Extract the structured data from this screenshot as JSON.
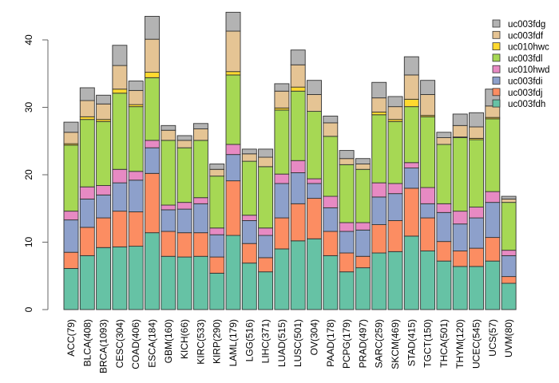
{
  "chart_data": {
    "type": "bar",
    "stacked": true,
    "title": "",
    "xlabel": "",
    "ylabel": "",
    "ylim": [
      0,
      40
    ],
    "yticks": [
      0,
      10,
      20,
      30,
      40
    ],
    "grid": false,
    "legend_position": "top-right",
    "categories": [
      "ACC(79)",
      "BLCA(408)",
      "BRCA(1093)",
      "CESC(304)",
      "COAD(406)",
      "ESCA(184)",
      "GBM(160)",
      "KICH(66)",
      "KIRC(533)",
      "KIRP(290)",
      "LAML(179)",
      "LGG(516)",
      "LIHC(371)",
      "LUAD(515)",
      "LUSC(501)",
      "OV(304)",
      "PAAD(178)",
      "PCPG(179)",
      "PRAD(497)",
      "SARC(259)",
      "SKCM(469)",
      "STAD(415)",
      "TGCT(150)",
      "THCA(501)",
      "THYM(120)",
      "UCEC(545)",
      "UCS(57)",
      "UVM(80)"
    ],
    "series": [
      {
        "name": "uc003fdh",
        "color": "#66C2A5",
        "values": [
          6.1,
          8.0,
          9.2,
          9.3,
          9.4,
          11.4,
          7.9,
          7.8,
          7.9,
          5.4,
          11.0,
          6.9,
          5.6,
          9.0,
          10.2,
          10.5,
          8.0,
          5.6,
          6.2,
          8.4,
          8.6,
          10.9,
          8.7,
          7.2,
          6.4,
          6.4,
          7.2,
          3.9
        ]
      },
      {
        "name": "uc003fdj",
        "color": "#FC8D62",
        "values": [
          2.4,
          4.2,
          4.4,
          5.3,
          5.1,
          8.8,
          3.7,
          3.6,
          3.5,
          2.4,
          8.1,
          2.9,
          2.1,
          4.6,
          5.5,
          6.0,
          3.6,
          2.8,
          1.7,
          4.2,
          4.6,
          7.1,
          4.9,
          2.9,
          2.3,
          2.7,
          3.5,
          1.0
        ]
      },
      {
        "name": "uc003fdi",
        "color": "#8DA0CB",
        "values": [
          4.8,
          4.2,
          3.4,
          4.2,
          4.7,
          3.8,
          3.2,
          3.5,
          4.3,
          3.3,
          3.9,
          3.4,
          3.3,
          5.1,
          4.6,
          2.2,
          3.5,
          3.2,
          3.9,
          4.1,
          4.0,
          3.0,
          2.1,
          4.3,
          4.0,
          4.5,
          5.2,
          3.1
        ]
      },
      {
        "name": "uc010hwd",
        "color": "#E78AC3",
        "values": [
          1.3,
          1.8,
          1.4,
          2.0,
          1.3,
          1.1,
          0.7,
          1.0,
          0.9,
          1.0,
          1.5,
          0.8,
          1.1,
          1.4,
          1.8,
          0.7,
          1.7,
          1.3,
          1.1,
          2.1,
          1.5,
          0.8,
          2.4,
          1.3,
          1.9,
          1.6,
          1.6,
          0.8
        ]
      },
      {
        "name": "uc003fdl",
        "color": "#A6D854",
        "values": [
          9.8,
          10.0,
          9.5,
          11.3,
          9.6,
          9.3,
          9.6,
          8.1,
          8.5,
          7.7,
          10.3,
          8.0,
          9.1,
          9.5,
          10.3,
          10.0,
          8.9,
          8.6,
          7.9,
          10.1,
          9.2,
          8.3,
          10.5,
          8.8,
          10.9,
          10.0,
          10.8,
          7.1
        ]
      },
      {
        "name": "uc010hwc",
        "color": "#FFD92F",
        "values": [
          0.2,
          0.4,
          0.3,
          0.6,
          0.3,
          0.8,
          0.0,
          0.0,
          0.0,
          0.0,
          0.5,
          0.0,
          0.0,
          0.3,
          0.6,
          0.0,
          0.0,
          0.0,
          0.0,
          0.4,
          0.3,
          1.1,
          0.2,
          0.0,
          0.1,
          0.2,
          0.2,
          0.0
        ]
      },
      {
        "name": "uc003fdf",
        "color": "#E5C494",
        "values": [
          1.7,
          2.4,
          2.3,
          3.5,
          2.1,
          4.9,
          1.5,
          1.1,
          1.7,
          1.0,
          6.0,
          1.1,
          1.4,
          2.5,
          3.3,
          2.5,
          2.0,
          0.9,
          0.8,
          2.1,
          1.9,
          3.6,
          3.1,
          1.0,
          1.7,
          1.7,
          1.7,
          0.5
        ]
      },
      {
        "name": "uc003fdg",
        "color": "#B3B3B3",
        "values": [
          1.5,
          1.9,
          1.3,
          3.0,
          1.4,
          3.4,
          0.7,
          0.7,
          0.8,
          0.8,
          2.8,
          0.7,
          1.2,
          1.1,
          2.2,
          2.1,
          1.0,
          1.2,
          0.8,
          2.3,
          1.5,
          2.7,
          2.1,
          0.8,
          1.7,
          2.1,
          2.5,
          0.4
        ]
      }
    ]
  }
}
